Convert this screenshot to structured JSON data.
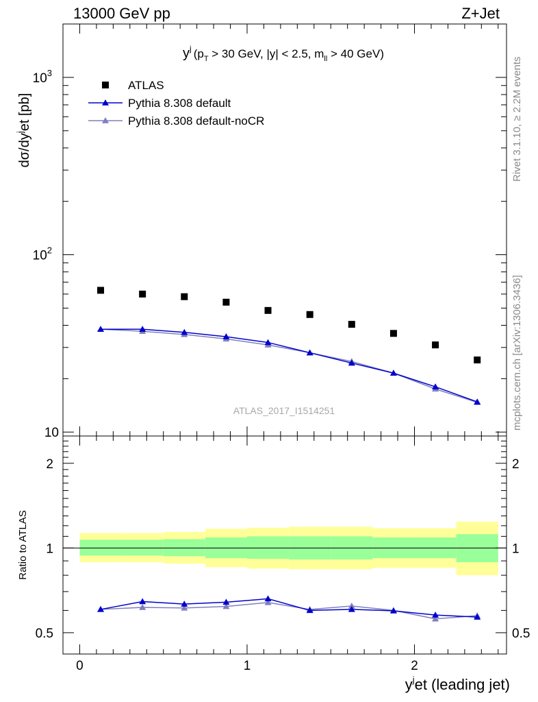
{
  "header": {
    "left": "13000 GeV pp",
    "right": "Z+Jet"
  },
  "side_labels": {
    "rivet": "Rivet 3.1.10, ≥ 2.2M events",
    "mcplots": "mcplots.cern.ch [arXiv:1306.3436]"
  },
  "watermark": "ATLAS_2017_I1514251",
  "chart_data": [
    {
      "type": "scatter",
      "title": {
        "main": "y",
        "sup": "j",
        "cut_a": "(p",
        "cut_a_sub": "T",
        "cut_b": " > 30 GeV, |y| < 2.5, m",
        "cut_b_sub": "ll",
        "cut_c": " > 40 GeV)"
      },
      "ylabel": "dσ/dy",
      "ylabel_sup": "j",
      "ylabel_tail": "et [pb]",
      "yscale": "log",
      "ylim": [
        9.5,
        2000
      ],
      "xlim": [
        -0.1,
        2.55
      ],
      "y_ticks": [
        {
          "value": 10,
          "label": "10"
        },
        {
          "value": 100,
          "label": "10",
          "exp": "2"
        },
        {
          "value": 1000,
          "label": "10",
          "exp": "3"
        }
      ],
      "legend_position": "top-left",
      "x": [
        0.125,
        0.375,
        0.625,
        0.875,
        1.125,
        1.375,
        1.625,
        1.875,
        2.125,
        2.375
      ],
      "series": [
        {
          "name": "ATLAS",
          "marker": "square",
          "color": "#000000",
          "values": [
            63,
            60,
            58,
            54,
            48.5,
            46,
            40.5,
            36,
            31,
            25.5
          ]
        },
        {
          "name": "Pythia 8.308 default",
          "marker": "triangle",
          "color": "#0000cc",
          "values": [
            38,
            38,
            36.5,
            34.5,
            32,
            28,
            24.5,
            21.5,
            18,
            14.8
          ]
        },
        {
          "name": "Pythia 8.308 default-noCR",
          "marker": "triangle",
          "color": "#7f7fbf",
          "values": [
            38,
            37,
            35.5,
            33.5,
            31,
            28,
            25,
            21.5,
            17.5,
            14.7
          ]
        }
      ]
    },
    {
      "type": "line",
      "ylabel": "Ratio to ATLAS",
      "xlabel": "y",
      "xlabel_sup": "j",
      "xlabel_tail": "et (leading jet)",
      "yscale": "log",
      "ylim": [
        0.42,
        2.5
      ],
      "xlim": [
        -0.1,
        2.55
      ],
      "x_ticks": [
        "0",
        "1",
        "2"
      ],
      "y_ticks": [
        {
          "value": 0.5,
          "label": "0.5"
        },
        {
          "value": 1,
          "label": "1"
        },
        {
          "value": 2,
          "label": "2"
        }
      ],
      "bins": [
        0,
        0.25,
        0.5,
        0.75,
        1.0,
        1.25,
        1.5,
        1.75,
        2.0,
        2.25,
        2.5
      ],
      "band_inner": [
        [
          0.94,
          1.07
        ],
        [
          0.94,
          1.07
        ],
        [
          0.935,
          1.075
        ],
        [
          0.92,
          1.09
        ],
        [
          0.915,
          1.1
        ],
        [
          0.91,
          1.1
        ],
        [
          0.91,
          1.1
        ],
        [
          0.92,
          1.09
        ],
        [
          0.92,
          1.09
        ],
        [
          0.89,
          1.12
        ]
      ],
      "band_outer": [
        [
          0.89,
          1.13
        ],
        [
          0.89,
          1.13
        ],
        [
          0.88,
          1.14
        ],
        [
          0.855,
          1.17
        ],
        [
          0.845,
          1.18
        ],
        [
          0.84,
          1.19
        ],
        [
          0.84,
          1.19
        ],
        [
          0.85,
          1.175
        ],
        [
          0.85,
          1.175
        ],
        [
          0.8,
          1.24
        ]
      ],
      "x": [
        0.125,
        0.375,
        0.625,
        0.875,
        1.125,
        1.375,
        1.625,
        1.875,
        2.125,
        2.375
      ],
      "series": [
        {
          "name": "Pythia 8.308 default",
          "color": "#0000cc",
          "values": [
            0.605,
            0.645,
            0.632,
            0.642,
            0.66,
            0.6,
            0.605,
            0.598,
            0.578,
            0.568
          ]
        },
        {
          "name": "Pythia 8.308 default-noCR",
          "color": "#7f7fbf",
          "values": [
            0.605,
            0.615,
            0.612,
            0.62,
            0.64,
            0.605,
            0.622,
            0.6,
            0.56,
            0.575
          ]
        }
      ],
      "colors": {
        "band_inner": "#99ff99",
        "band_outer": "#ffff99",
        "ref_line": "#000000"
      }
    }
  ]
}
